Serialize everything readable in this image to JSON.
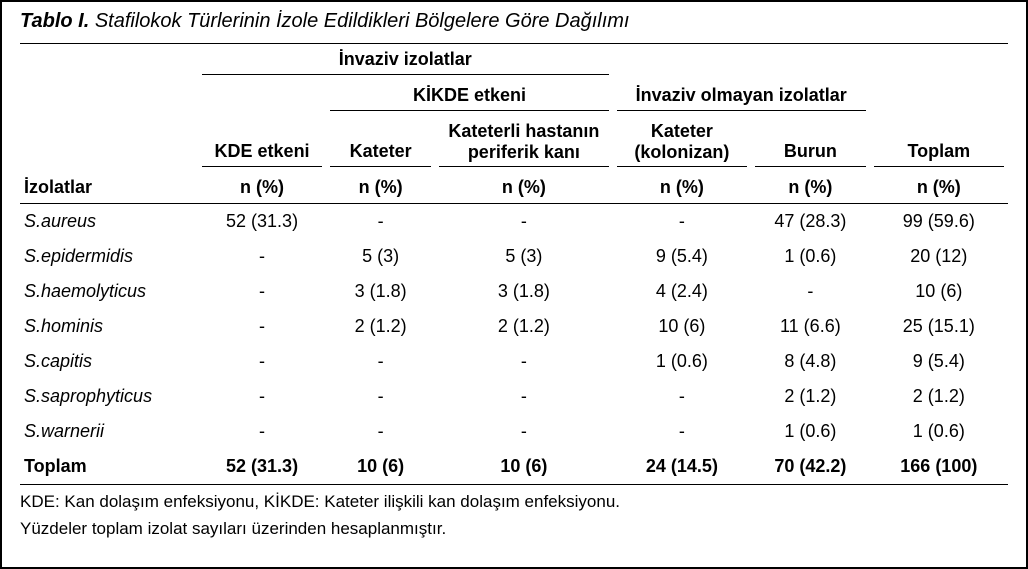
{
  "title_prefix": "Tablo I.",
  "title_rest": " Stafilokok Türlerinin İzole Edildikleri Bölgelere Göre Dağılımı",
  "headers": {
    "invaziv": "İnvaziv izolatlar",
    "kikde": "KİKDE etkeni",
    "noninvaziv": "İnvaziv olmayan izolatlar",
    "kde": "KDE etkeni",
    "kateter": "Kateter",
    "periferik": "Kateterli hastanın periferik kanı",
    "kateter_kol": "Kateter (kolonizan)",
    "burun": "Burun",
    "toplam": "Toplam",
    "izolatlar": "İzolatlar",
    "npct": "n (%)"
  },
  "rows": [
    {
      "name": "S.aureus",
      "c": [
        "52 (31.3)",
        "-",
        "-",
        "-",
        "47 (28.3)",
        "99 (59.6)"
      ]
    },
    {
      "name": "S.epidermidis",
      "c": [
        "-",
        "5 (3)",
        "5 (3)",
        "9 (5.4)",
        "1 (0.6)",
        "20 (12)"
      ]
    },
    {
      "name": "S.haemolyticus",
      "c": [
        "-",
        "3 (1.8)",
        "3 (1.8)",
        "4 (2.4)",
        "-",
        "10 (6)"
      ]
    },
    {
      "name": "S.hominis",
      "c": [
        "-",
        "2 (1.2)",
        "2 (1.2)",
        "10 (6)",
        "11 (6.6)",
        "25 (15.1)"
      ]
    },
    {
      "name": "S.capitis",
      "c": [
        "-",
        "-",
        "-",
        "1 (0.6)",
        "8 (4.8)",
        "9 (5.4)"
      ]
    },
    {
      "name": "S.saprophyticus",
      "c": [
        "-",
        "-",
        "-",
        "-",
        "2 (1.2)",
        "2 (1.2)"
      ]
    },
    {
      "name": "S.warnerii",
      "c": [
        "-",
        "-",
        "-",
        "-",
        "1 (0.6)",
        "1 (0.6)"
      ]
    }
  ],
  "total_row": {
    "name": "Toplam",
    "c": [
      "52 (31.3)",
      "10 (6)",
      "10 (6)",
      "24 (14.5)",
      "70 (42.2)",
      "166 (100)"
    ]
  },
  "footnotes": [
    "KDE: Kan dolaşım enfeksiyonu, KİKDE: Kateter ilişkili kan dolaşım enfeksiyonu.",
    "Yüzdeler toplam izolat sayıları üzerinden hesaplanmıştır."
  ],
  "style": {
    "border_color": "#000000",
    "background": "#ffffff",
    "font_base_pt": 18,
    "title_pt": 20
  }
}
